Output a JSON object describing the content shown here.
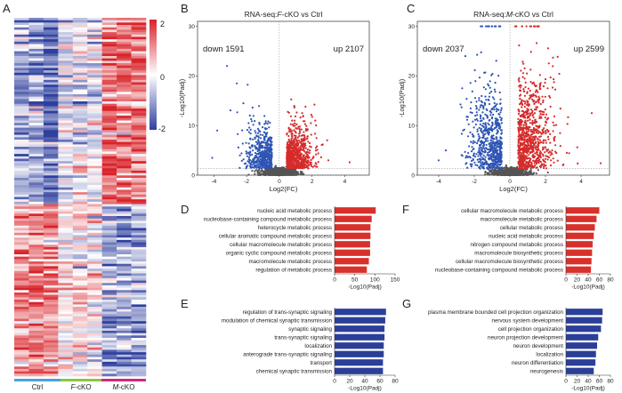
{
  "panel_labels": {
    "a": "A",
    "b": "B",
    "c": "C",
    "d": "D",
    "e": "E",
    "f": "F",
    "g": "G"
  },
  "colors": {
    "up": "#d62b2b",
    "down": "#2e55b5",
    "ns": "#555555",
    "bar_red": "#d8302b",
    "bar_blue": "#2b3f98",
    "ctrl_bar": "#4aa3d9",
    "fcko_bar": "#8cc63f",
    "mcko_bar": "#d6267a"
  },
  "heatmap": {
    "groups": [
      {
        "label": "Ctrl",
        "prefix": "",
        "suffix": "Ctrl"
      },
      {
        "label": "F-cKO",
        "prefix": "F",
        "suffix": "-cKO"
      },
      {
        "label": "M-cKO",
        "prefix": "M",
        "suffix": "-cKO"
      }
    ],
    "colorbar": {
      "max": "2",
      "mid": "0",
      "min": "-2"
    }
  },
  "chart_data": [
    {
      "id": "B",
      "type": "scatter",
      "title_pre": "RNA-seq:",
      "title_italic": "F",
      "title_post": "-cKO vs Ctrl",
      "xlabel": "Log2(FC)",
      "ylabel": "-Log10(Padj)",
      "xlim": [
        -5,
        5.5
      ],
      "ylim": [
        0,
        31
      ],
      "xticks": [
        "-4",
        "-2",
        "0",
        "2",
        "4"
      ],
      "xtick_values": [
        -4,
        -2,
        0,
        2,
        4
      ],
      "yticks": [
        "0",
        "10",
        "20",
        "30"
      ],
      "ytick_values": [
        0,
        10,
        20,
        30
      ],
      "threshold_y": 1.3,
      "down_label": "down 1591",
      "up_label": "up 2107",
      "down_count": 1591,
      "up_count": 2107,
      "outliers": [
        [
          -3.2,
          22.0
        ],
        [
          -2.6,
          18.5
        ],
        [
          -3.8,
          9.0
        ],
        [
          -4.1,
          3.5
        ],
        [
          -2.2,
          14.5
        ],
        [
          1.6,
          13.8
        ],
        [
          2.2,
          11.0
        ],
        [
          3.0,
          3.0
        ],
        [
          -1.8,
          12.0
        ],
        [
          4.3,
          2.6
        ],
        [
          1.4,
          12.5
        ]
      ]
    },
    {
      "id": "C",
      "type": "scatter",
      "title_pre": "RNA-seq:",
      "title_italic": "M",
      "title_post": "-cKO vs Ctrl",
      "xlabel": "Log2(FC)",
      "ylabel": "-Log10(Padj)",
      "xlim": [
        -5.2,
        5.6
      ],
      "ylim": [
        0,
        31
      ],
      "xticks": [
        "-4",
        "-2",
        "0",
        "2",
        "4"
      ],
      "xtick_values": [
        -4,
        -2,
        0,
        2,
        4
      ],
      "yticks": [
        "0",
        "10",
        "20",
        "30"
      ],
      "ytick_values": [
        0,
        10,
        20,
        30
      ],
      "threshold_y": 1.3,
      "down_label": "down 2037",
      "up_label": "up 2599",
      "down_count": 2037,
      "up_count": 2599,
      "outliers": [
        [
          -3.6,
          5.0
        ],
        [
          -4.0,
          3.0
        ],
        [
          4.6,
          12.5
        ],
        [
          5.1,
          2.4
        ],
        [
          3.2,
          4.5
        ],
        [
          -2.5,
          24.0
        ]
      ]
    },
    {
      "id": "D",
      "type": "bar",
      "orientation": "horizontal",
      "color": "red",
      "categories": [
        "nucleic acid metabolic process",
        "nucleobase-containing compound metabolic process",
        "heterocycle metabolic process",
        "cellular aromatic compound metabolic process",
        "cellular macromolecule metabolic process",
        "organic cyclic compound metabolic process",
        "macromolecule metabolic process",
        "regulation of metabolic process"
      ],
      "values": [
        102,
        92,
        89,
        89,
        88,
        88,
        85,
        80
      ],
      "xlim": [
        0,
        150
      ],
      "xticks": [
        "0",
        "50",
        "100",
        "150"
      ],
      "xtick_values": [
        0,
        50,
        100,
        150
      ],
      "xlabel": "-Log10(Padj)"
    },
    {
      "id": "E",
      "type": "bar",
      "orientation": "horizontal",
      "color": "blue",
      "categories": [
        "regulation of trans-synaptic signaling",
        "modulation of chemical synaptic transmission",
        "synaptic signaling",
        "trans-synaptic signaling",
        "localization",
        "anterograde trans-synaptic signaling",
        "transport",
        "chemical synaptic transmission"
      ],
      "values": [
        68,
        67,
        66,
        66,
        65,
        65,
        64,
        64
      ],
      "xlim": [
        0,
        80
      ],
      "xticks": [
        "0",
        "20",
        "40",
        "60",
        "80"
      ],
      "xtick_values": [
        0,
        20,
        40,
        60,
        80
      ],
      "xlabel": "-Log10(Padj)"
    },
    {
      "id": "F",
      "type": "bar",
      "orientation": "horizontal",
      "color": "red",
      "categories": [
        "cellular macromolecule metabolic process",
        "macromolecule metabolic process",
        "cellular metabolic process",
        "nucleic acid metabolic process",
        "nitrogen compound metabolic process",
        "macromolecule biosynthetic process",
        "cellular macromolecule biosynthetic process",
        "nucleobase-containing compound metabolic process"
      ],
      "values": [
        60,
        55,
        52,
        50,
        48,
        47,
        46,
        45
      ],
      "xlim": [
        0,
        80
      ],
      "xticks": [
        "0",
        "20",
        "40",
        "60",
        "80"
      ],
      "xtick_values": [
        0,
        20,
        40,
        60,
        80
      ],
      "xlabel": "-Log10(Padj)"
    },
    {
      "id": "G",
      "type": "bar",
      "orientation": "horizontal",
      "color": "blue",
      "categories": [
        "plasma membrane bounded cell projection organization",
        "nervous system development",
        "cell projection organization",
        "neuron projection development",
        "neuron development",
        "localization",
        "neuron differentiation",
        "neurogenesis"
      ],
      "values": [
        66,
        65,
        63,
        58,
        56,
        54,
        53,
        50
      ],
      "xlim": [
        0,
        80
      ],
      "xticks": [
        "0",
        "20",
        "40",
        "60",
        "80"
      ],
      "xtick_values": [
        0,
        20,
        40,
        60,
        80
      ],
      "xlabel": "-Log10(Padj)"
    }
  ]
}
